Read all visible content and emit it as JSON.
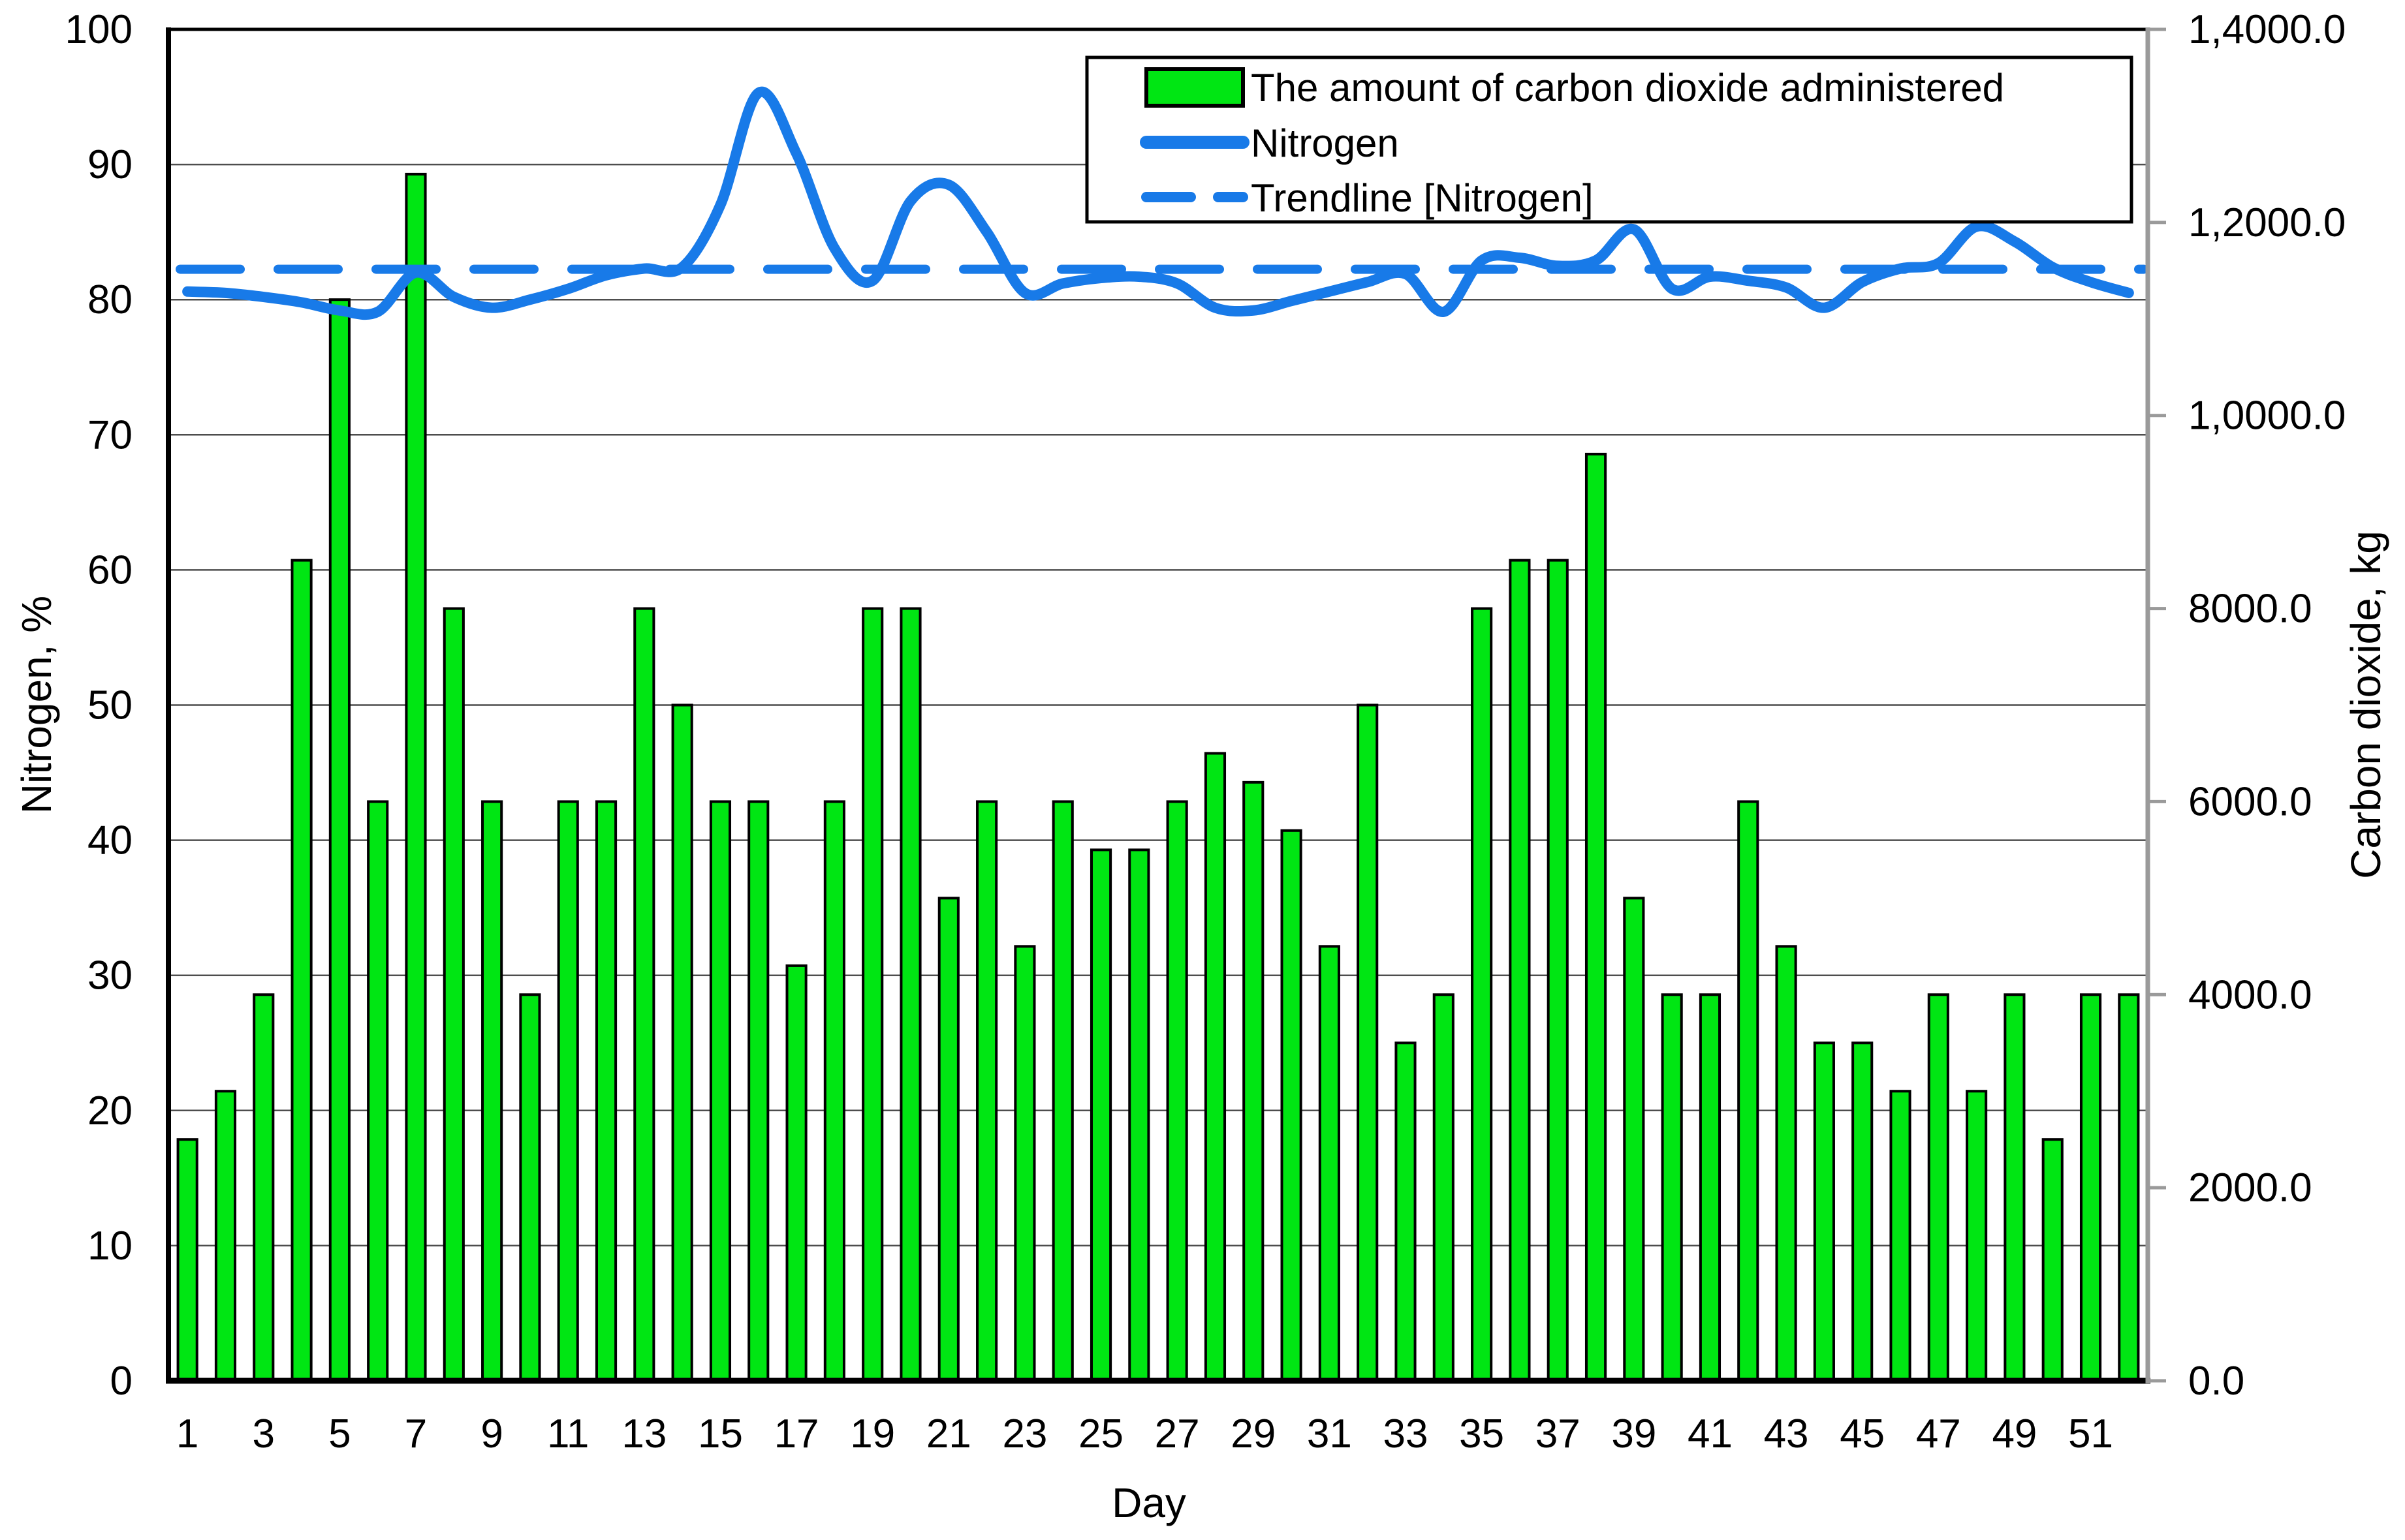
{
  "chart_data": {
    "type": "combo",
    "title": "",
    "xlabel": "Day",
    "ylabel_left": "Nitrogen, %",
    "ylabel_right": "Carbon dioxide, kg",
    "x_days": [
      1,
      2,
      3,
      4,
      5,
      6,
      7,
      8,
      9,
      10,
      11,
      12,
      13,
      14,
      15,
      16,
      17,
      18,
      19,
      20,
      21,
      22,
      23,
      24,
      25,
      26,
      27,
      28,
      29,
      30,
      31,
      32,
      33,
      34,
      35,
      36,
      37,
      38,
      39,
      40,
      41,
      42,
      43,
      44,
      45,
      46,
      47,
      48,
      49,
      50,
      51,
      52
    ],
    "x_tick_labels": [
      "1",
      "3",
      "5",
      "7",
      "9",
      "11",
      "13",
      "15",
      "17",
      "19",
      "21",
      "23",
      "25",
      "27",
      "29",
      "31",
      "33",
      "35",
      "37",
      "39",
      "41",
      "43",
      "45",
      "47",
      "49",
      "51"
    ],
    "ylim_left": [
      0,
      100
    ],
    "y_ticks_left": [
      0,
      10,
      20,
      30,
      40,
      50,
      60,
      70,
      80,
      90,
      100
    ],
    "ylim_right": [
      0,
      14000
    ],
    "y_ticks_right_values": [
      0,
      2000,
      4000,
      6000,
      8000,
      10000,
      12000,
      14000
    ],
    "y_ticks_right_labels": [
      "0.0",
      "2000.0",
      "4000.0",
      "6000.0",
      "8000.0",
      "1,0000.0",
      "1,2000.0",
      "1,4000.0"
    ],
    "grid": true,
    "legend_position": "top-right",
    "series": [
      {
        "name": "The amount of carbon dioxide administered",
        "type": "bar",
        "axis": "right",
        "color": "#00e613",
        "values": [
          2500,
          3000,
          4000,
          8500,
          11200,
          6000,
          12500,
          8000,
          6000,
          4000,
          6000,
          6000,
          8000,
          7000,
          6000,
          6000,
          4300,
          6000,
          8000,
          8000,
          5000,
          6000,
          4500,
          6000,
          5500,
          5500,
          6000,
          6500,
          6200,
          5700,
          4500,
          7000,
          3500,
          4000,
          8000,
          8500,
          8500,
          9600,
          5000,
          4000,
          4000,
          6000,
          4500,
          3500,
          3500,
          3000,
          4000,
          3000,
          4000,
          2500,
          4000,
          4000
        ]
      },
      {
        "name": "Nitrogen",
        "type": "line",
        "axis": "left",
        "color": "#187ae8",
        "values": [
          80.6,
          80.5,
          80.2,
          79.8,
          79.2,
          79.1,
          82.0,
          80.2,
          79.4,
          80.0,
          80.8,
          81.8,
          82.3,
          82.4,
          87.0,
          95.3,
          90.8,
          83.8,
          81.4,
          87.3,
          88.5,
          85.0,
          80.5,
          81.2,
          81.6,
          81.7,
          81.2,
          79.4,
          79.2,
          79.9,
          80.6,
          81.3,
          81.9,
          79.1,
          82.9,
          83.1,
          82.5,
          82.9,
          85.2,
          80.8,
          81.7,
          81.4,
          80.9,
          79.4,
          81.3,
          82.3,
          82.7,
          85.4,
          84.3,
          82.4,
          81.3,
          80.5
        ]
      },
      {
        "name": "Trendline [Nitrogen]",
        "type": "dashed-line",
        "axis": "left",
        "color": "#187ae8",
        "constant_value": 82.25
      }
    ]
  },
  "colors": {
    "bar_fill": "#00e613",
    "bar_stroke": "#000000",
    "line_blue": "#187ae8",
    "grid": "#4d4d4d",
    "axis_black": "#000000",
    "axis_right_gray": "#9a9a9a",
    "background": "#ffffff"
  }
}
